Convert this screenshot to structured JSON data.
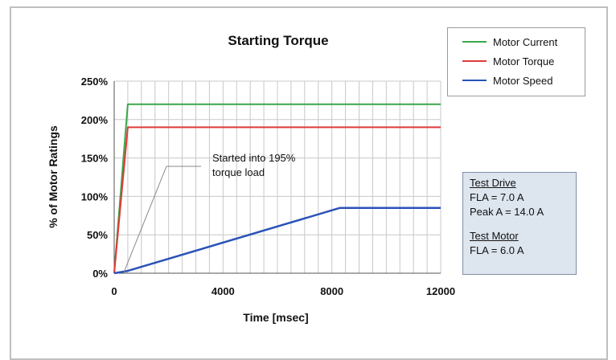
{
  "chart_data": {
    "type": "line",
    "title": "Starting Torque",
    "xlabel": "Time [msec]",
    "ylabel": "% of Motor Ratings",
    "xlim": [
      0,
      12000
    ],
    "ylim": [
      0,
      250
    ],
    "xticks": [
      "0",
      "4000",
      "8000",
      "12000"
    ],
    "yticks": [
      "0%",
      "50%",
      "100%",
      "150%",
      "200%",
      "250%"
    ],
    "grid": true,
    "legend_position": "top-right",
    "series": [
      {
        "name": "Motor Current",
        "color": "#3aa84a",
        "x": [
          0,
          500,
          12000
        ],
        "y": [
          0,
          220,
          220
        ]
      },
      {
        "name": "Motor Torque",
        "color": "#e03a3a",
        "x": [
          0,
          500,
          12000
        ],
        "y": [
          0,
          190,
          190
        ]
      },
      {
        "name": "Motor Speed",
        "color": "#2a52b8",
        "x": [
          0,
          500,
          8300,
          12000
        ],
        "y": [
          0,
          3,
          85,
          85
        ]
      }
    ],
    "annotation": {
      "line1": "Started into 195%",
      "line2": "torque load"
    }
  },
  "info_box": {
    "drive_header": "Test Drive",
    "drive_fla": "FLA = 7.0 A",
    "drive_peak": "Peak A = 14.0 A",
    "motor_header": "Test Motor",
    "motor_fla": "FLA = 6.0 A"
  }
}
